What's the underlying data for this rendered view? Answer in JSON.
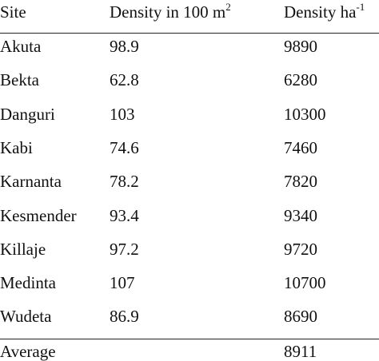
{
  "table": {
    "header": [
      "Site",
      {
        "text": "Density in 100 m",
        "sup": "2"
      },
      {
        "text": "Density ha",
        "sup": "-1"
      }
    ],
    "rows": [
      [
        "Akuta",
        98.9,
        9890
      ],
      [
        "Bekta",
        62.8,
        6280
      ],
      [
        "Danguri",
        103,
        10300
      ],
      [
        "Kabi",
        74.6,
        7460
      ],
      [
        "Karnanta",
        78.2,
        7820
      ],
      [
        "Kesmender",
        93.4,
        9340
      ],
      [
        "Killaje",
        97.2,
        9720
      ],
      [
        "Medinta",
        107,
        10700
      ],
      [
        "Wudeta",
        86.9,
        8690
      ]
    ],
    "footer": {
      "label": "Average",
      "density_ha": 8911
    }
  }
}
